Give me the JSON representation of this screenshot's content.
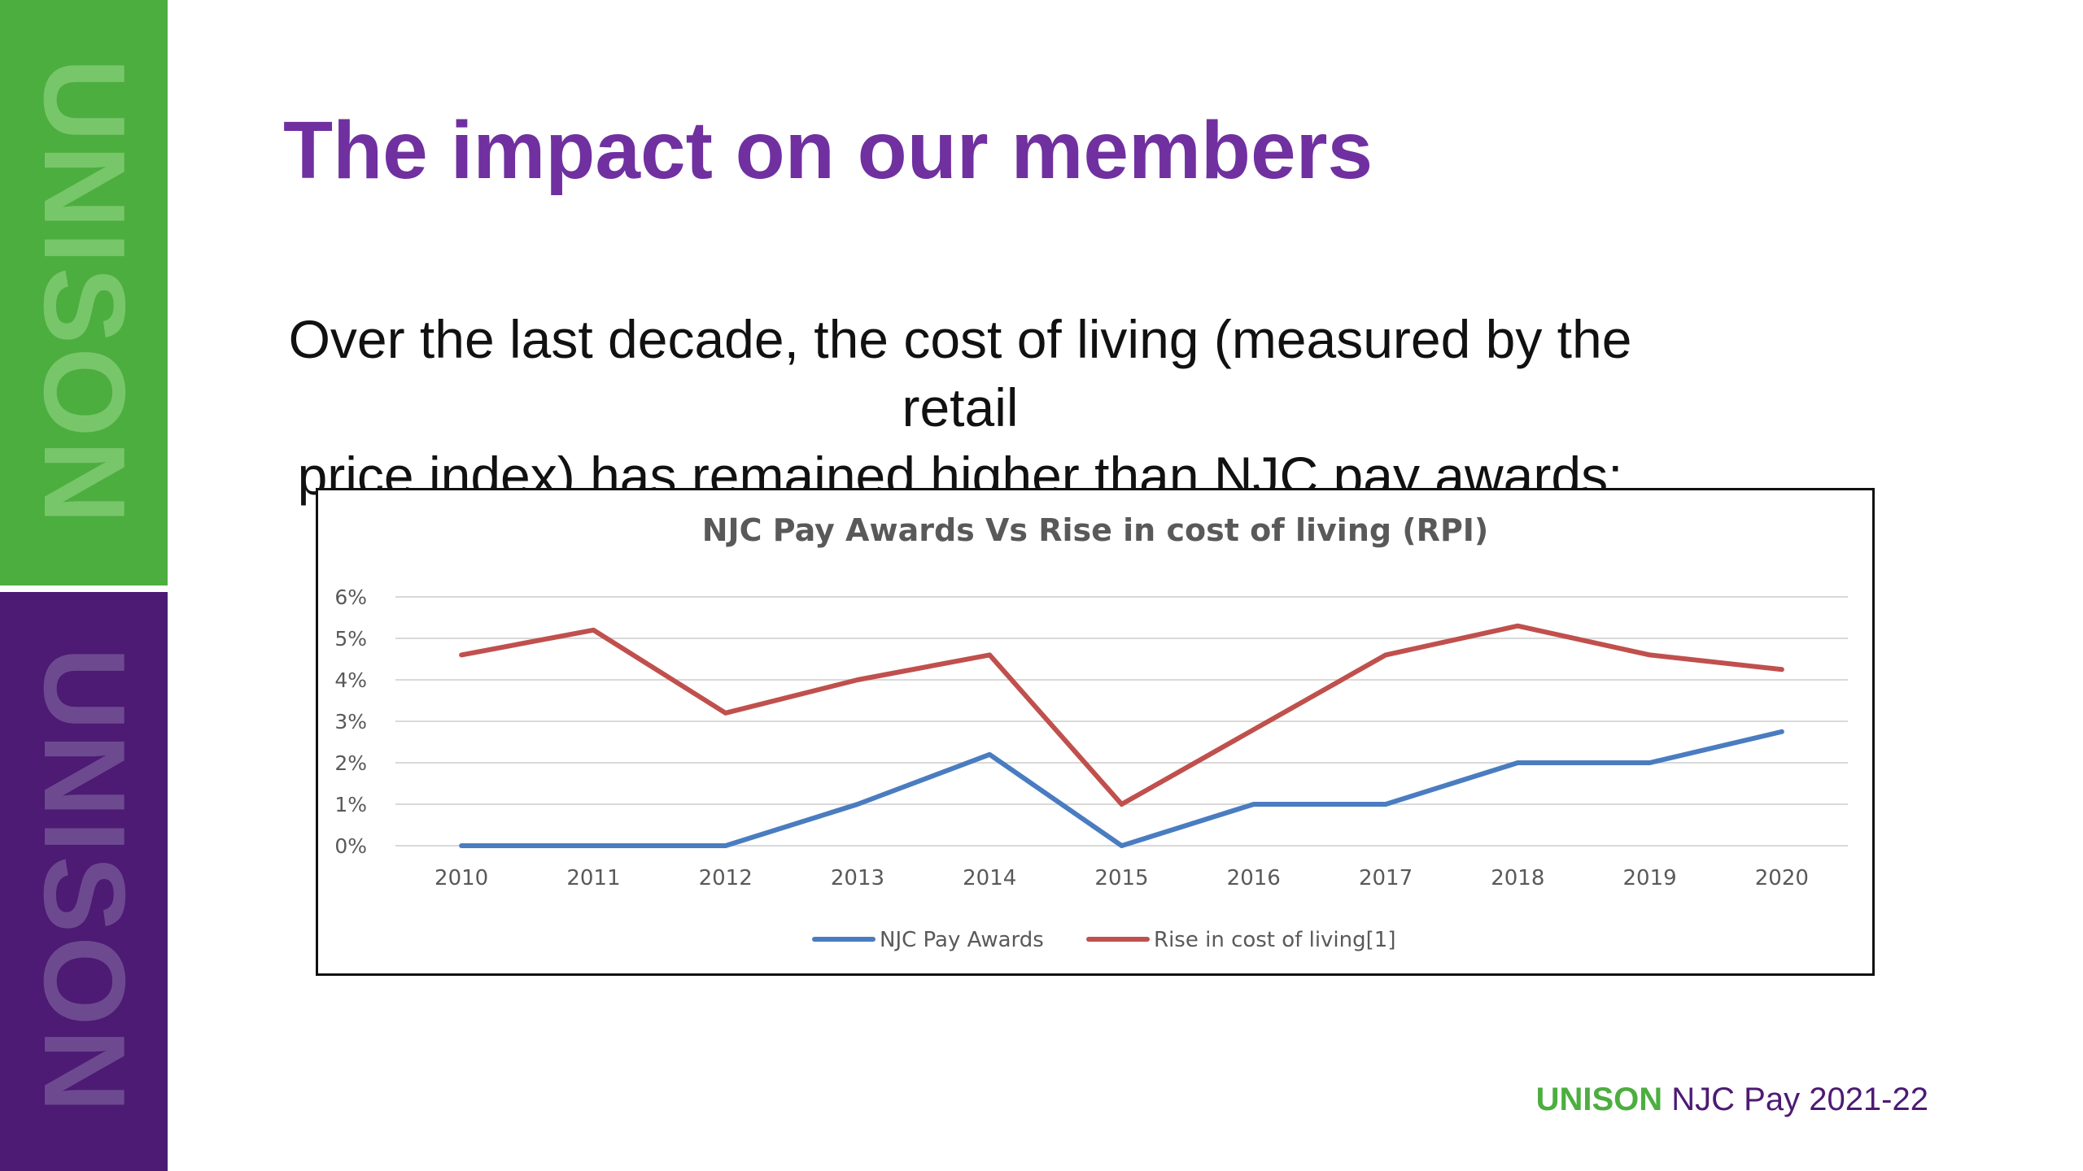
{
  "branding": {
    "strip_word": "UNISON",
    "colors": {
      "green": "#4cae3f",
      "purple": "#4d1a74"
    }
  },
  "slide": {
    "title": "The impact on our members",
    "intro_line1": "Over the last decade, the cost of living (measured by the retail",
    "intro_line2": "price index) has remained higher than NJC pay awards:"
  },
  "footer": {
    "brand": "UNISON",
    "text": " NJC Pay 2021-22"
  },
  "chart_data": {
    "type": "line",
    "title": "NJC Pay Awards Vs Rise in cost of living (RPI)",
    "categories": [
      "2010",
      "2011",
      "2012",
      "2013",
      "2014",
      "2015",
      "2016",
      "2017",
      "2018",
      "2019",
      "2020"
    ],
    "y_ticks": [
      "0%",
      "1%",
      "2%",
      "3%",
      "4%",
      "5%",
      "6%"
    ],
    "ylim": [
      0,
      6
    ],
    "grid": "horizontal",
    "legend_position": "bottom",
    "series": [
      {
        "name": "NJC Pay Awards",
        "color": "#4a7cc0",
        "values": [
          0,
          0,
          0,
          1.0,
          2.2,
          0,
          1.0,
          1.0,
          2.0,
          2.0,
          2.75
        ]
      },
      {
        "name": "Rise in cost of living[1]",
        "color": "#c0504d",
        "values": [
          4.6,
          5.2,
          3.2,
          4.0,
          4.6,
          1.0,
          2.8,
          4.6,
          5.3,
          4.6,
          4.25
        ]
      }
    ]
  }
}
